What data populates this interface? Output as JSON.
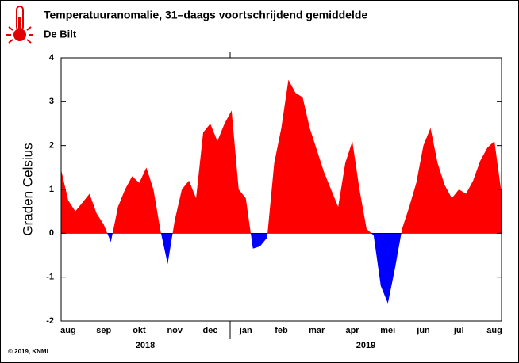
{
  "chart_data": {
    "type": "area",
    "title": "Temperatuuranomalie, 31–daags voortschrijdend gemiddelde",
    "subtitle": "De Bilt",
    "y_label": "Graden Celsius",
    "copyright": "© 2019, KNMI",
    "year_labels": [
      "2018",
      "2019"
    ],
    "positive_color": "#ff0000",
    "negative_color": "#0000ff",
    "ylim": [
      -2,
      4
    ],
    "yticks": [
      -2,
      -1,
      0,
      1,
      2,
      3,
      4
    ],
    "categories": [
      null,
      "aug",
      null,
      null,
      null,
      null,
      "sep",
      null,
      null,
      null,
      null,
      "okt",
      null,
      null,
      null,
      null,
      "nov",
      null,
      null,
      null,
      null,
      "dec",
      null,
      null,
      null,
      null,
      "jan",
      null,
      null,
      null,
      null,
      "feb",
      null,
      null,
      null,
      null,
      "mar",
      null,
      null,
      null,
      null,
      "apr",
      null,
      null,
      null,
      null,
      "mei",
      null,
      null,
      null,
      null,
      "jun",
      null,
      null,
      null,
      null,
      "jul",
      null,
      null,
      null,
      null,
      "aug",
      null
    ],
    "values": [
      1.45,
      0.75,
      0.5,
      0.7,
      0.9,
      0.45,
      0.2,
      -0.2,
      0.6,
      1.0,
      1.3,
      1.15,
      1.5,
      1.0,
      0.05,
      -0.7,
      0.3,
      1.0,
      1.2,
      0.8,
      2.3,
      2.5,
      2.1,
      2.5,
      2.8,
      1.0,
      0.8,
      -0.35,
      -0.3,
      -0.1,
      1.6,
      2.4,
      3.5,
      3.2,
      3.1,
      2.4,
      1.9,
      1.4,
      1.0,
      0.6,
      1.6,
      2.1,
      1.0,
      0.1,
      -0.05,
      -1.2,
      -1.6,
      -0.8,
      0.1,
      0.6,
      1.15,
      2.0,
      2.4,
      1.6,
      1.1,
      0.8,
      1.0,
      0.9,
      1.2,
      1.65,
      1.95,
      2.1,
      0.9
    ]
  }
}
